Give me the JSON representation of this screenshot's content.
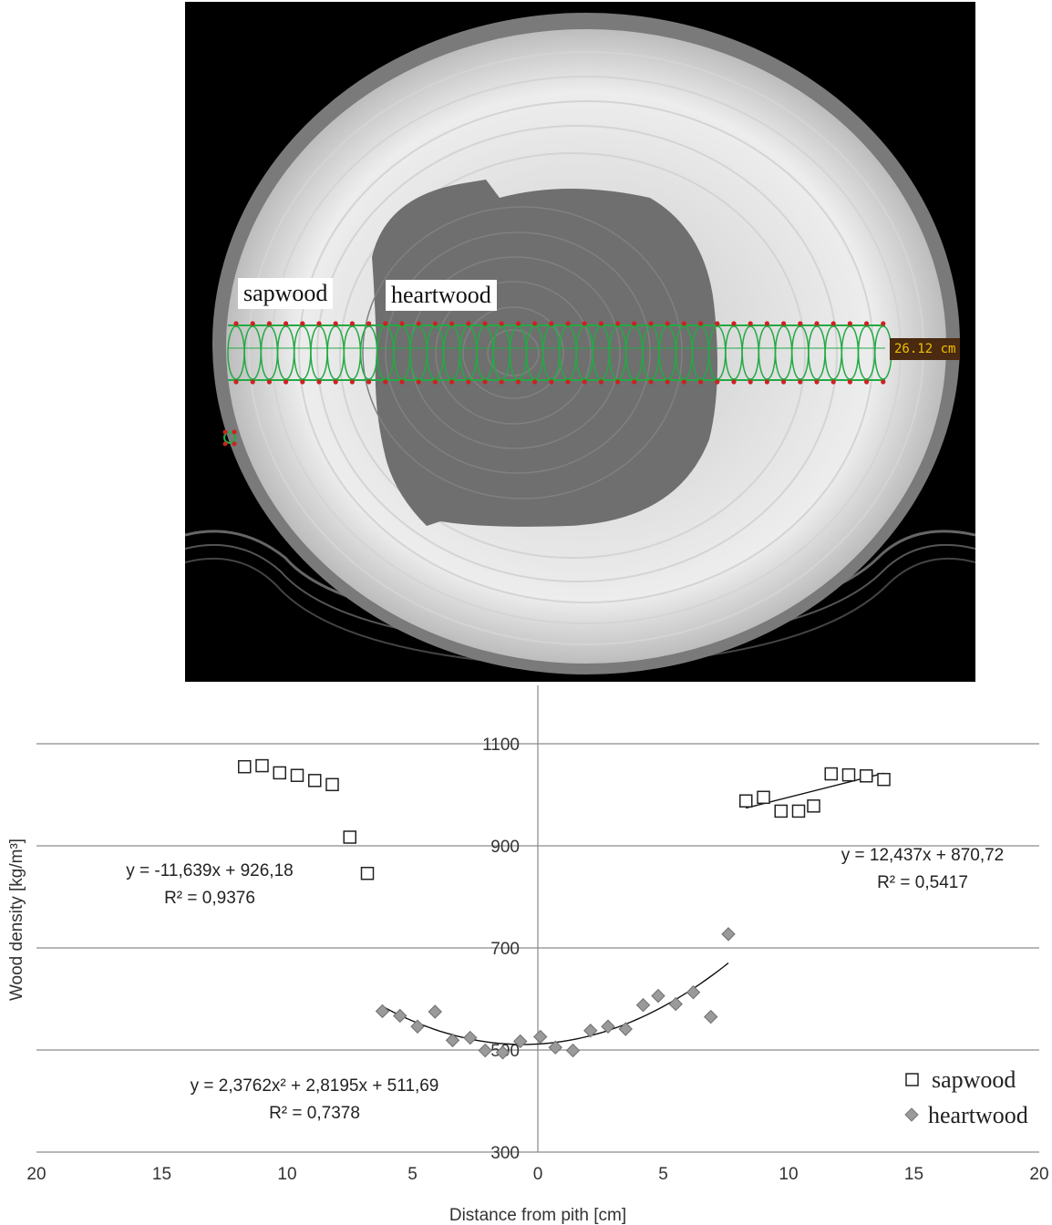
{
  "image_panel": {
    "labels": {
      "sapwood": "sapwood",
      "heartwood": "heartwood"
    },
    "measurement": "26.12 cm"
  },
  "chart_data": {
    "type": "scatter",
    "xlabel": "Distance from pith [cm]",
    "ylabel": "Wood density [kg/m³]",
    "x_ticks": [
      "20",
      "15",
      "10",
      "5",
      "0",
      "5",
      "10",
      "15",
      "20"
    ],
    "y_ticks": [
      300,
      500,
      700,
      900,
      1100
    ],
    "xlim": [
      -20,
      20
    ],
    "ylim": [
      300,
      1200
    ],
    "grid": "horizontal",
    "legend": "bottom-right",
    "series": [
      {
        "name": "sapwood",
        "marker": "square-open",
        "color": "#222222",
        "points": [
          [
            -11.7,
            1055
          ],
          [
            -11.0,
            1057
          ],
          [
            -10.3,
            1043
          ],
          [
            -9.6,
            1038
          ],
          [
            -8.9,
            1028
          ],
          [
            -8.2,
            1020
          ],
          [
            -7.5,
            917
          ],
          [
            -6.8,
            846
          ],
          [
            8.3,
            988
          ],
          [
            9.0,
            995
          ],
          [
            9.7,
            968
          ],
          [
            10.4,
            968
          ],
          [
            11.0,
            978
          ],
          [
            11.7,
            1041
          ],
          [
            12.4,
            1039
          ],
          [
            13.1,
            1037
          ],
          [
            13.8,
            1030
          ]
        ]
      },
      {
        "name": "heartwood",
        "marker": "diamond",
        "color": "#9a9a9a",
        "points": [
          [
            -6.2,
            576
          ],
          [
            -5.5,
            567
          ],
          [
            -4.8,
            546
          ],
          [
            -4.1,
            575
          ],
          [
            -3.4,
            519
          ],
          [
            -2.7,
            524
          ],
          [
            -2.1,
            499
          ],
          [
            -1.4,
            495
          ],
          [
            -0.7,
            517
          ],
          [
            0.1,
            526
          ],
          [
            0.7,
            505
          ],
          [
            1.4,
            499
          ],
          [
            2.1,
            538
          ],
          [
            2.8,
            546
          ],
          [
            3.5,
            541
          ],
          [
            4.2,
            588
          ],
          [
            4.8,
            606
          ],
          [
            5.5,
            590
          ],
          [
            6.2,
            613
          ],
          [
            6.9,
            565
          ],
          [
            7.6,
            727
          ]
        ]
      }
    ],
    "trendlines": [
      {
        "series": "sapwood (left)",
        "equation": "y = -11,639x + 926,18",
        "r2": "R² = 0,9376",
        "r2_value": 0.9376
      },
      {
        "series": "sapwood (right)",
        "equation": "y = 12,437x + 870,72",
        "r2": "R² = 0,5417",
        "r2_value": 0.5417,
        "fit": {
          "slope": 12.437,
          "intercept": 870.72,
          "x_range": [
            8.3,
            13.8
          ]
        }
      },
      {
        "series": "heartwood",
        "equation": "y = 2,3762x² + 2,8195x + 511,69",
        "r2": "R² = 0,7378",
        "r2_value": 0.7378,
        "fit": {
          "a": 2.3762,
          "b": 2.8195,
          "c": 511.69,
          "x_range": [
            -6.2,
            7.6
          ]
        }
      }
    ]
  }
}
